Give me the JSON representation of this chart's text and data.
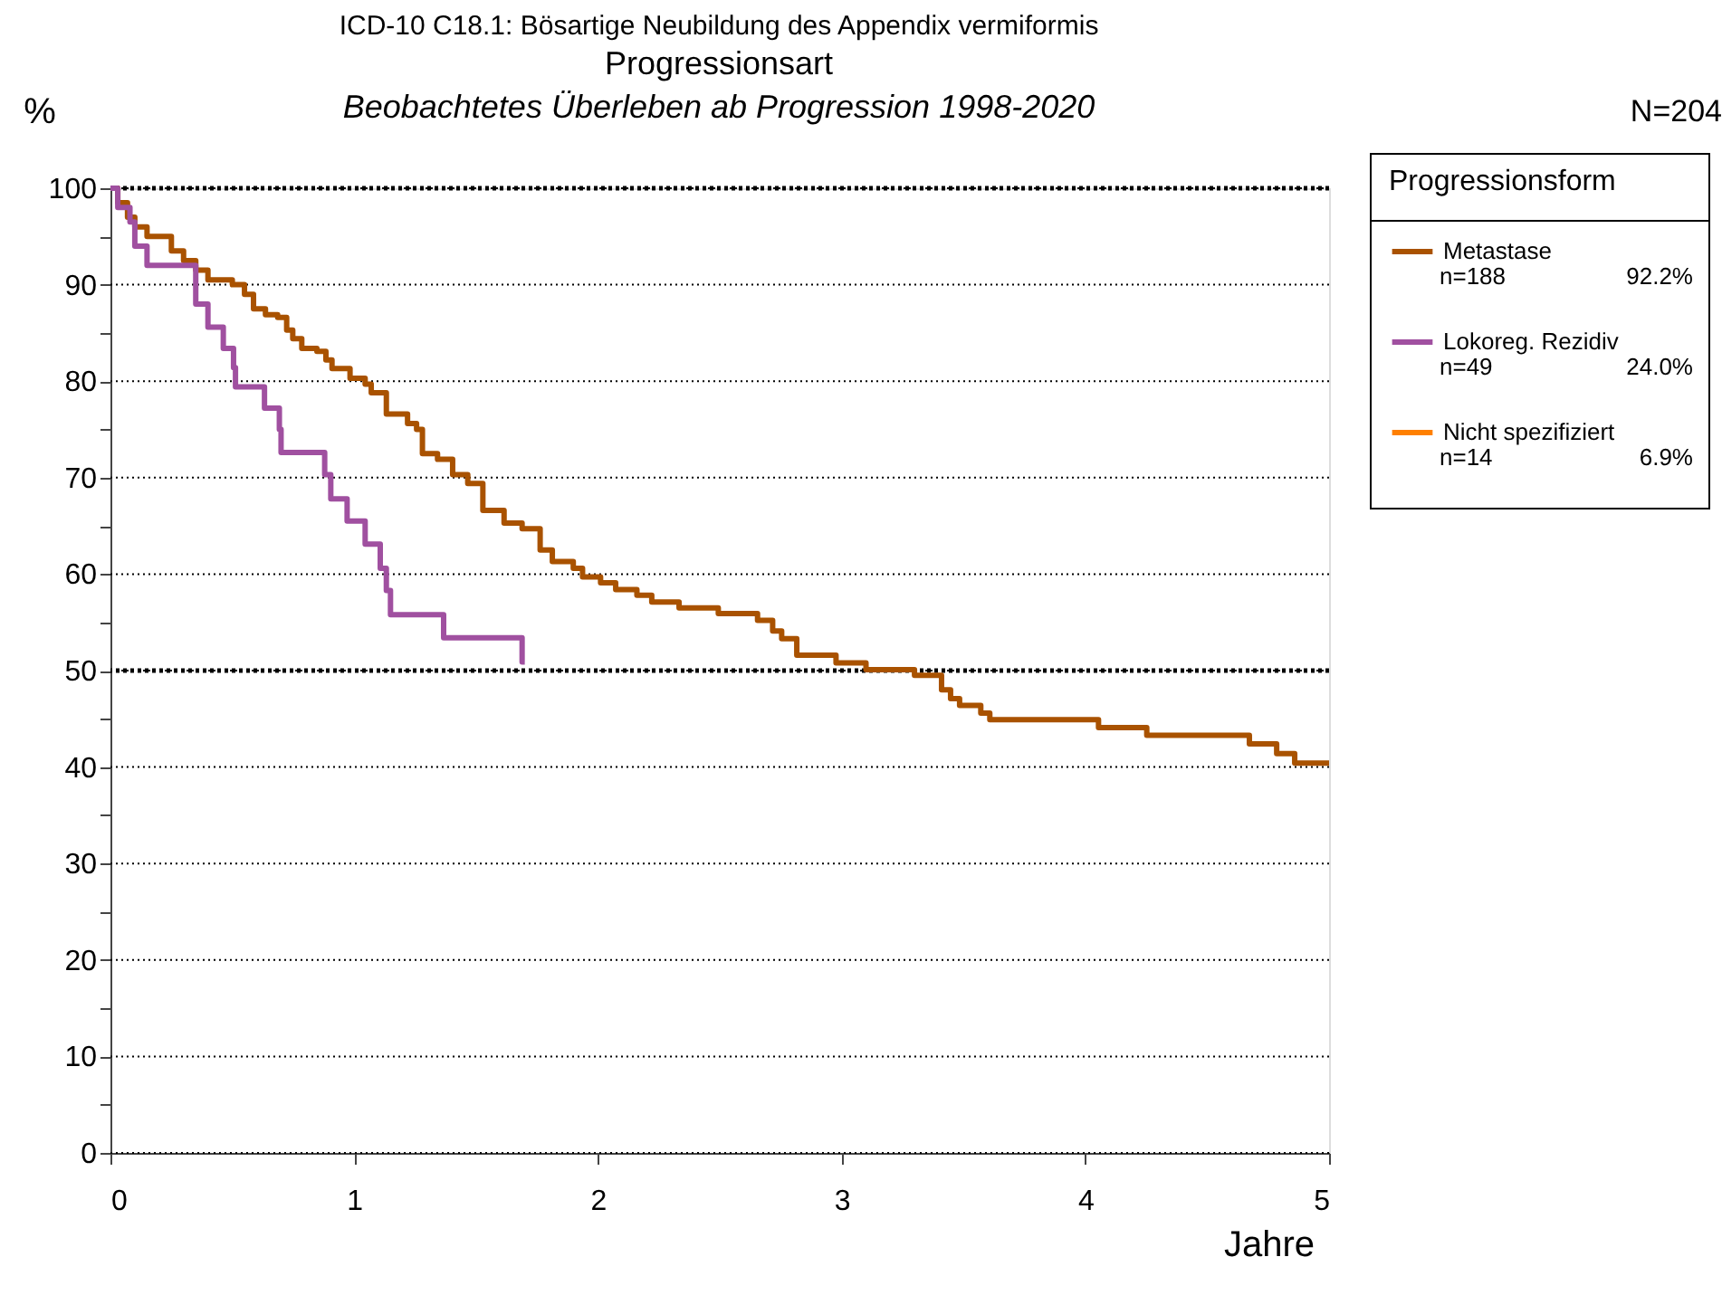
{
  "chart_data": {
    "type": "step",
    "title": "ICD-10 C18.1: Bösartige Neubildung des Appendix vermiformis\nProgressionsart",
    "subtitle": "Beobachtetes Überleben ab Progression 1998-2020",
    "xlabel": "Jahre",
    "ylabel": "%",
    "legend_title": "Progressionsform",
    "annotations": [
      "N=204",
      "n=188",
      "92.2%",
      "n=49",
      "24.0%",
      "n=14",
      "6.9%"
    ],
    "series": [
      {
        "name": "Metastase",
        "color": "#a95200",
        "x": [
          0,
          0.03,
          0.07,
          0.1,
          0.15,
          0.25,
          0.3,
          0.35,
          0.4,
          0.5,
          0.55,
          0.587,
          0.636,
          0.686,
          0.723,
          0.748,
          0.785,
          0.847,
          0.884,
          0.909,
          0.983,
          1.045,
          1.07,
          1.132,
          1.219,
          1.256,
          1.28,
          1.342,
          1.404,
          1.466,
          1.528,
          1.615,
          1.689,
          1.763,
          1.813,
          1.899,
          1.937,
          2.011,
          2.073,
          2.16,
          2.221,
          2.333,
          2.494,
          2.655,
          2.717,
          2.754,
          2.816,
          2.977,
          3.1,
          3.299,
          3.41,
          3.447,
          3.484,
          3.571,
          3.608,
          4.054,
          4.252,
          4.673,
          4.785,
          4.859,
          5.0
        ],
        "values": [
          100,
          98.5,
          97,
          96,
          95,
          93.5,
          92.5,
          91.5,
          90.5,
          90,
          89,
          87.5,
          86.9,
          86.6,
          85.3,
          84.4,
          83.4,
          83.1,
          82.2,
          81.3,
          80.3,
          79.7,
          78.8,
          76.6,
          75.6,
          75,
          72.5,
          71.9,
          70.3,
          69.4,
          66.6,
          65.3,
          64.7,
          62.5,
          61.3,
          60.6,
          59.7,
          59.1,
          58.4,
          57.8,
          57.1,
          56.5,
          55.9,
          55.2,
          54.1,
          53.3,
          51.6,
          50.8,
          50.1,
          49.5,
          48,
          47.1,
          46.4,
          45.6,
          44.9,
          44.1,
          43.3,
          42.4,
          41.4,
          40.4,
          40.4
        ]
      },
      {
        "name": "Lokoreg. Rezidiv",
        "color": "#a050a0",
        "x": [
          0,
          0.03,
          0.08,
          0.1,
          0.15,
          0.35,
          0.4,
          0.463,
          0.505,
          0.513,
          0.632,
          0.693,
          0.7,
          0.879,
          0.904,
          0.971,
          1.045,
          1.107,
          1.132,
          1.149,
          1.367,
          1.689,
          1.7
        ],
        "values": [
          100,
          98,
          96.5,
          94,
          92,
          88,
          85.6,
          83.4,
          81.4,
          79.4,
          77.2,
          75,
          72.6,
          70.3,
          67.8,
          65.5,
          63.1,
          60.6,
          58.3,
          55.8,
          53.4,
          50.9,
          50.9
        ]
      },
      {
        "name": "Nicht spezifiziert",
        "color": "#ff8000"
      }
    ],
    "xlim": [
      0,
      5
    ],
    "xticks": [
      0,
      1,
      2,
      3,
      4,
      5
    ],
    "ylim": [
      0,
      100
    ],
    "yticks": [
      0,
      {
        "value": 5,
        "label": null
      },
      10,
      {
        "value": 15,
        "label": null
      },
      20,
      {
        "value": 25,
        "label": null
      },
      30,
      {
        "value": 35,
        "label": null
      },
      40,
      {
        "value": 45,
        "label": null
      },
      50,
      {
        "value": 55,
        "label": null
      },
      60,
      {
        "value": 65,
        "label": null
      },
      70,
      {
        "value": 75,
        "label": null
      },
      80,
      {
        "value": 85,
        "label": null
      },
      90,
      {
        "value": 95,
        "label": null
      },
      100
    ],
    "grid": "y",
    "ref_lines": [
      {
        "axis": "y",
        "value": 50,
        "label": null,
        "line_style": "dotted"
      },
      {
        "axis": "y",
        "value": 100,
        "label": null,
        "line_style": "dotted"
      }
    ],
    "legend": "right",
    "line_style": "solid",
    "marker": "none"
  }
}
